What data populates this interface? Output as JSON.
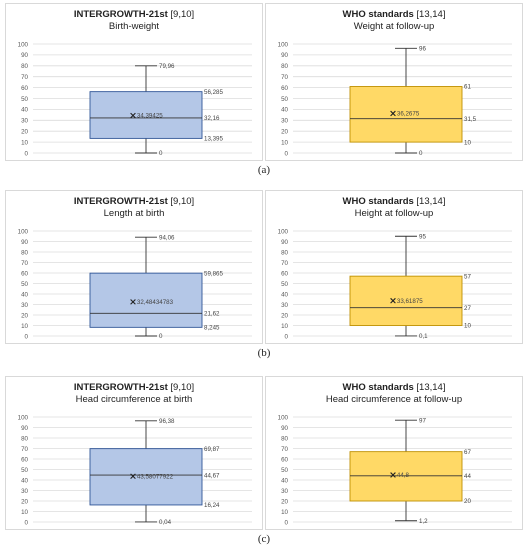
{
  "captions": [
    "(a)",
    "(b)",
    "(c)"
  ],
  "chart_data": [
    {
      "type": "box",
      "title": "INTERGROWTH-21st",
      "title_refs": "[9,10]",
      "subtitle": "Birth-weight",
      "ylim": [
        0,
        100
      ],
      "yticks": [
        "0",
        "10",
        "20",
        "30",
        "40",
        "50",
        "60",
        "70",
        "80",
        "90",
        "100"
      ],
      "grid": true,
      "color": "#b4c7e7",
      "edge": "#2f5597",
      "stats": {
        "min": 0,
        "q1": 13.395,
        "median": 32.16,
        "q3": 56.285,
        "max": 79.96,
        "mean": 34.39425
      },
      "labels": {
        "min": "0",
        "q1": "13,395",
        "median": "32,16",
        "q3": "56,285",
        "max": "79,96",
        "mean": "34,39425"
      }
    },
    {
      "type": "box",
      "title": "WHO standards",
      "title_refs": "[13,14]",
      "subtitle": "Weight at follow-up",
      "ylim": [
        0,
        100
      ],
      "yticks": [
        "0",
        "10",
        "20",
        "30",
        "40",
        "50",
        "60",
        "70",
        "80",
        "90",
        "100"
      ],
      "grid": true,
      "color": "#ffd966",
      "edge": "#bf9000",
      "stats": {
        "min": 0,
        "q1": 10,
        "median": 31.5,
        "q3": 61,
        "max": 96,
        "mean": 36.2675
      },
      "labels": {
        "min": "0",
        "q1": "10",
        "median": "31,5",
        "q3": "61",
        "max": "96",
        "mean": "36,2675"
      }
    },
    {
      "type": "box",
      "title": "INTERGROWTH-21st",
      "title_refs": "[9,10]",
      "subtitle": "Length at birth",
      "ylim": [
        0,
        100
      ],
      "yticks": [
        "0",
        "10",
        "20",
        "30",
        "40",
        "50",
        "60",
        "70",
        "80",
        "90",
        "100"
      ],
      "grid": true,
      "color": "#b4c7e7",
      "edge": "#2f5597",
      "stats": {
        "min": 0,
        "q1": 8.245,
        "median": 21.62,
        "q3": 59.865,
        "max": 94.06,
        "mean": 32.48434783
      },
      "labels": {
        "min": "0",
        "q1": "8,245",
        "median": "21,62",
        "q3": "59,865",
        "max": "94,06",
        "mean": "32,48434783"
      }
    },
    {
      "type": "box",
      "title": "WHO standards",
      "title_refs": "[13,14]",
      "subtitle": "Height at follow-up",
      "ylim": [
        0,
        100
      ],
      "yticks": [
        "0",
        "10",
        "20",
        "30",
        "40",
        "50",
        "60",
        "70",
        "80",
        "90",
        "100"
      ],
      "grid": true,
      "color": "#ffd966",
      "edge": "#bf9000",
      "stats": {
        "min": 0.1,
        "q1": 10,
        "median": 27,
        "q3": 57,
        "max": 95,
        "mean": 33.61875
      },
      "labels": {
        "min": "0,1",
        "q1": "10",
        "median": "27",
        "q3": "57",
        "max": "95",
        "mean": "33,61875"
      }
    },
    {
      "type": "box",
      "title": "INTERGROWTH-21st",
      "title_refs": "[9,10]",
      "subtitle": "Head circumference at birth",
      "ylim": [
        0,
        100
      ],
      "yticks": [
        "0",
        "10",
        "20",
        "30",
        "40",
        "50",
        "60",
        "70",
        "80",
        "90",
        "100"
      ],
      "grid": true,
      "color": "#b4c7e7",
      "edge": "#2f5597",
      "stats": {
        "min": 0.04,
        "q1": 16.24,
        "median": 44.67,
        "q3": 69.87,
        "max": 96.38,
        "mean": 43.58077922
      },
      "labels": {
        "min": "0,04",
        "q1": "16,24",
        "median": "44,67",
        "q3": "69,87",
        "max": "96,38",
        "mean": "43,58077922"
      }
    },
    {
      "type": "box",
      "title": "WHO standards",
      "title_refs": "[13,14]",
      "subtitle": "Head circumference at follow-up",
      "ylim": [
        0,
        100
      ],
      "yticks": [
        "0",
        "10",
        "20",
        "30",
        "40",
        "50",
        "60",
        "70",
        "80",
        "90",
        "100"
      ],
      "grid": true,
      "color": "#ffd966",
      "edge": "#bf9000",
      "stats": {
        "min": 1.2,
        "q1": 20,
        "median": 44,
        "q3": 67,
        "max": 97,
        "mean": 44.8
      },
      "labels": {
        "min": "1,2",
        "q1": "20",
        "median": "44",
        "q3": "67",
        "max": "97",
        "mean": "44,8"
      }
    }
  ]
}
